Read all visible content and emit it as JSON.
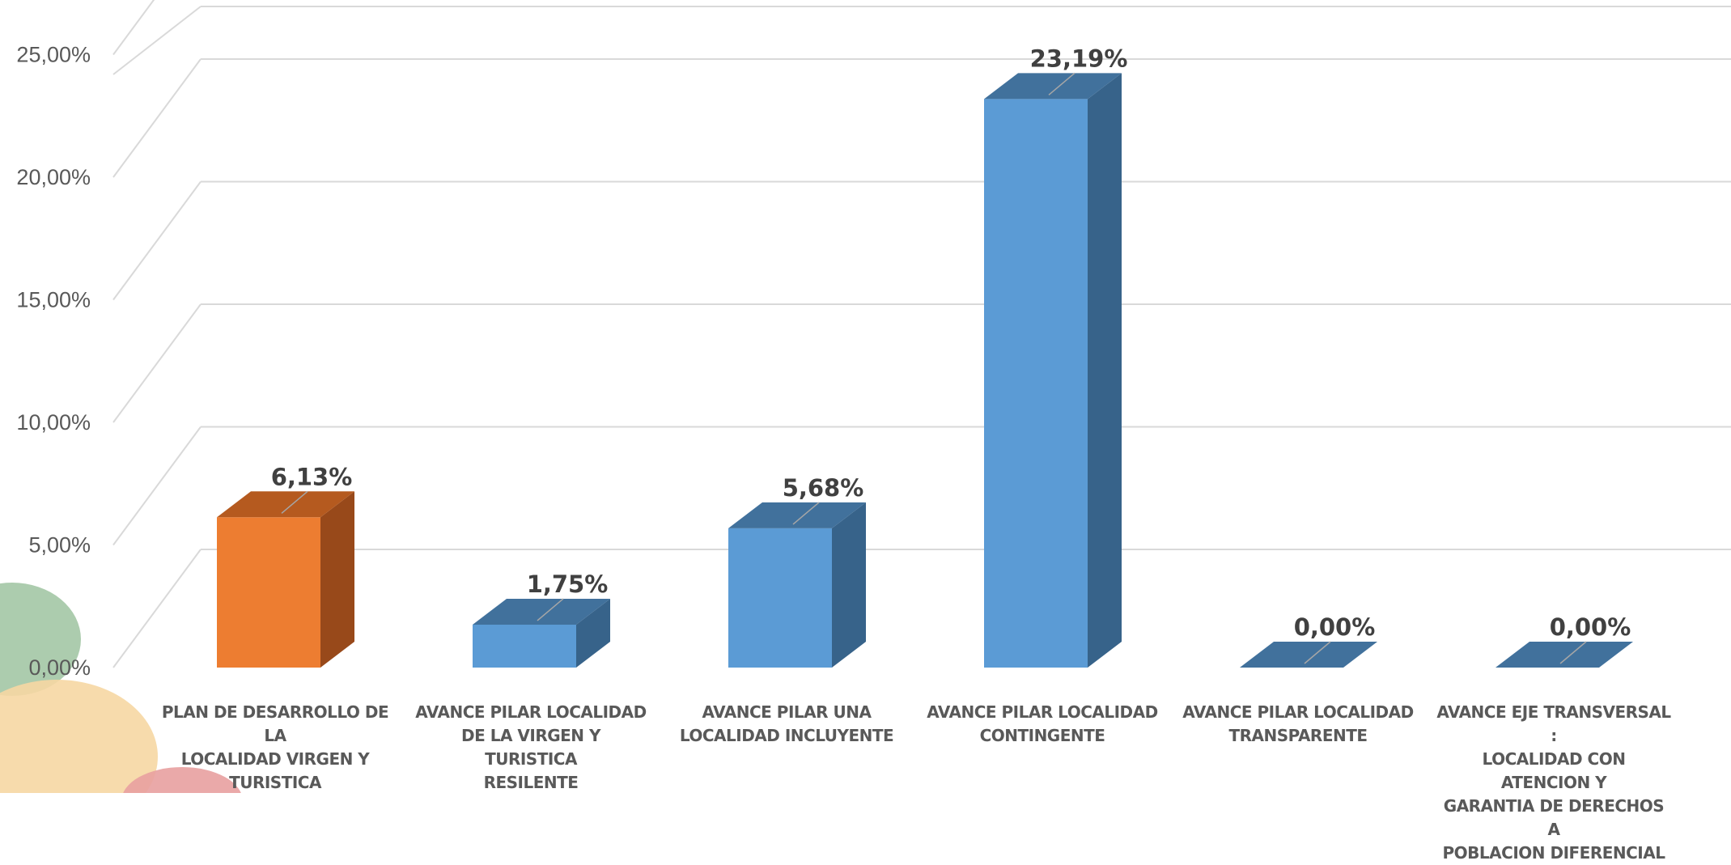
{
  "chart_data": {
    "type": "bar",
    "categories": [
      "PLAN DE DESARROLLO DE LA\nLOCALIDAD VIRGEN Y\nTURISTICA",
      "AVANCE PILAR LOCALIDAD\nDE LA VIRGEN Y TURISTICA\nRESILENTE",
      "AVANCE PILAR UNA\nLOCALIDAD INCLUYENTE",
      "AVANCE PILAR LOCALIDAD\nCONTINGENTE",
      "AVANCE PILAR LOCALIDAD\nTRANSPARENTE",
      "AVANCE EJE TRANSVERSAL :\nLOCALIDAD CON ATENCION Y\nGARANTIA DE DERECHOS A\nPOBLACION DIFERENCIAL"
    ],
    "values": [
      6.13,
      1.75,
      5.68,
      23.19,
      0.0,
      0.0
    ],
    "data_labels": [
      "6,13%",
      "1,75%",
      "5,68%",
      "23,19%",
      "0,00%",
      "0,00%"
    ],
    "bar_colors": [
      "#ED7D31",
      "#5B9BD5",
      "#5B9BD5",
      "#5B9BD5",
      "#5B9BD5",
      "#5B9BD5"
    ],
    "y_ticks": [
      {
        "value": 0,
        "label": "0,00%"
      },
      {
        "value": 5,
        "label": "5,00%"
      },
      {
        "value": 10,
        "label": "10,00%"
      },
      {
        "value": 15,
        "label": "15,00%"
      },
      {
        "value": 20,
        "label": "20,00%"
      },
      {
        "value": 25,
        "label": "25,00%"
      }
    ],
    "ylim": [
      0,
      27
    ],
    "title": "",
    "xlabel": "",
    "ylabel": "",
    "style": "3d-column",
    "grid": true,
    "legend": "none"
  }
}
